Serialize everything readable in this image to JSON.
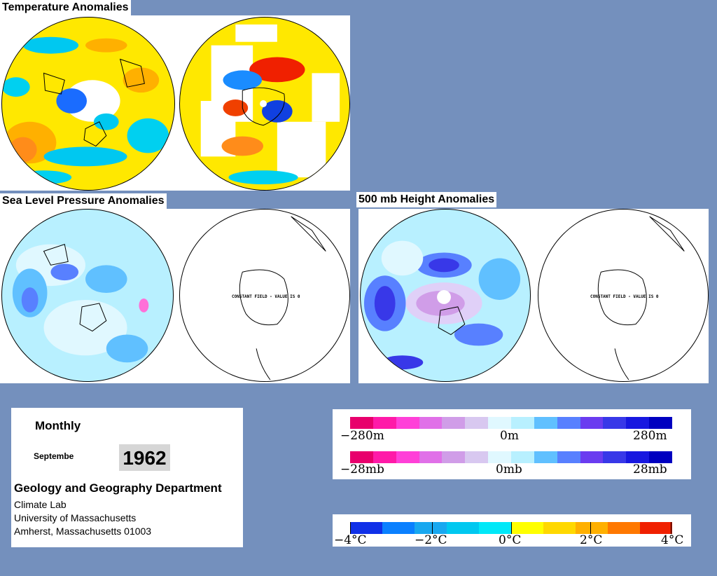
{
  "titles": {
    "temperature": "Temperature Anomalies",
    "slp": "Sea Level Pressure Anomalies",
    "height500": "500 mb Height Anomalies"
  },
  "constant_field_label": "CONSTANT FIELD - VALUE IS 0",
  "info": {
    "period": "Monthly",
    "month": "Septembe",
    "year": "1962",
    "department": "Geology and Geography Department",
    "line1": "Climate Lab",
    "line2": "University of Massachusetts",
    "line3": "Amherst, Massachusetts 01003"
  },
  "legends": {
    "height": {
      "labels": [
        "−280m",
        "0m",
        "280m"
      ]
    },
    "pressure": {
      "labels": [
        "−28mb",
        "0mb",
        "28mb"
      ]
    },
    "temperature": {
      "labels": [
        "−4°C",
        "−2°C",
        "0°C",
        "2°C",
        "4°C"
      ]
    }
  },
  "colors": {
    "background": "#7490bd",
    "anomaly_scale": [
      "#e8006c",
      "#ff1aa8",
      "#ff40d8",
      "#e070e8",
      "#d09de8",
      "#d8c8f0",
      "#e0f8ff",
      "#b8f0ff",
      "#60c0ff",
      "#5880ff",
      "#6a3cf0",
      "#3838e8",
      "#1818e0",
      "#0000c0"
    ],
    "temperature_scale": [
      "#1030e8",
      "#0a80ff",
      "#18a8f0",
      "#00c8f0",
      "#00e8f8",
      "#ffff00",
      "#ffd800",
      "#ffb000",
      "#ff7800",
      "#f02000"
    ]
  }
}
